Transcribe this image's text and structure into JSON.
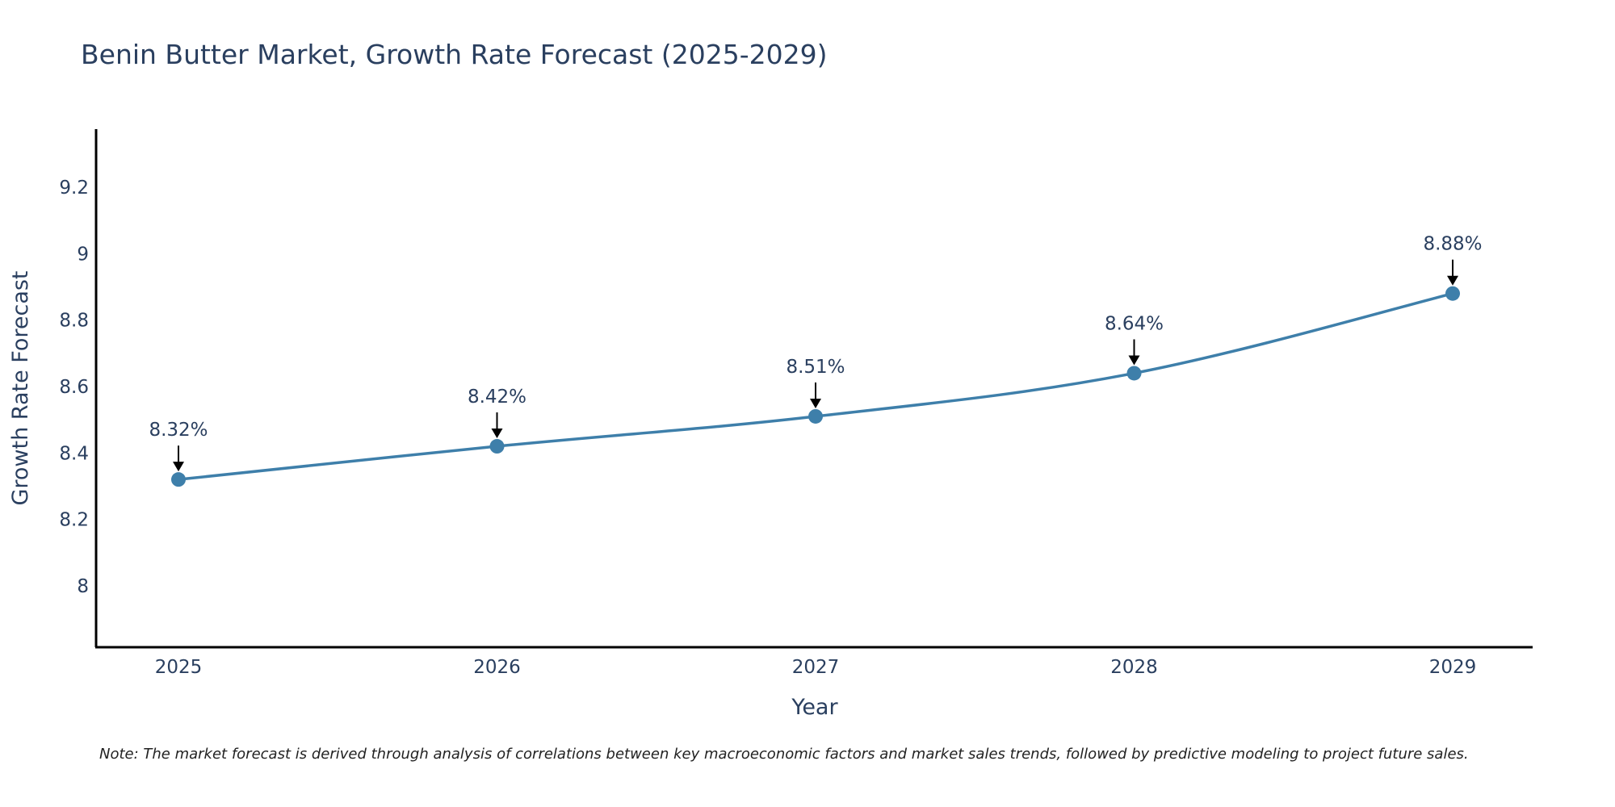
{
  "chart_data": {
    "type": "line",
    "title": "Benin Butter Market, Growth Rate Forecast (2025-2029)",
    "xlabel": "Year",
    "ylabel": "Growth Rate Forecast",
    "categories": [
      "2025",
      "2026",
      "2027",
      "2028",
      "2029"
    ],
    "series": [
      {
        "name": "Growth Rate Forecast",
        "values": [
          8.32,
          8.42,
          8.51,
          8.64,
          8.88
        ],
        "labels": [
          "8.32%",
          "8.42%",
          "8.51%",
          "8.64%",
          "8.88%"
        ]
      }
    ],
    "ylim": [
      7.815,
      9.375
    ],
    "yticks": [
      8,
      8.2,
      8.4,
      8.6,
      8.8,
      9,
      9.2
    ],
    "ytick_labels": [
      "8",
      "8.2",
      "8.4",
      "8.6",
      "8.8",
      "9",
      "9.2"
    ],
    "grid": false,
    "line_color": "#3e7faa",
    "marker_color": "#3e7faa",
    "note": "Note: The market forecast is derived through analysis of correlations between key macroeconomic factors and market sales trends, followed by predictive modeling to project future sales."
  }
}
